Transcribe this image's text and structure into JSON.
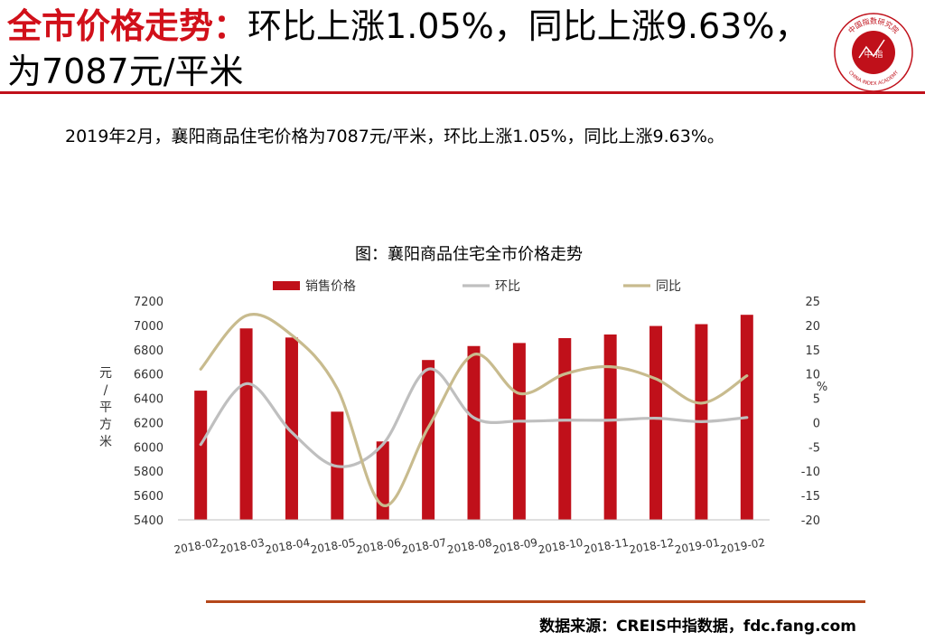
{
  "header": {
    "title_highlight": "全市价格走势：",
    "title_rest": "环比上涨1.05%，同比上涨9.63%，为7087元/平米"
  },
  "logo": {
    "name": "china-index-academy-logo",
    "text_top": "中国指数研究院",
    "text_bottom": "CHINA INDEX ACADEMY",
    "center": "中 指"
  },
  "summary": "2019年2月，襄阳商品住宅价格为7087元/平米，环比上涨1.05%，同比上涨9.63%。",
  "source": "数据来源：CREIS中指数据，fdc.fang.com",
  "colors": {
    "brand_red": "#c0101a",
    "bar": "#c0101a",
    "mom_line": "#bfbfbf",
    "yoy_line": "#c8bb8e",
    "rule": "#b5471b"
  },
  "chart_data": {
    "type": "bar",
    "title": "图：襄阳商品住宅全市价格走势",
    "categories": [
      "2018-02",
      "2018-03",
      "2018-04",
      "2018-05",
      "2018-06",
      "2018-07",
      "2018-08",
      "2018-09",
      "2018-10",
      "2018-11",
      "2018-12",
      "2019-01",
      "2019-02"
    ],
    "ylabel_left": "元/平方米",
    "ylabel_right": "%",
    "ylim_left": [
      5400,
      7200
    ],
    "ylim_right": [
      -20,
      25
    ],
    "yticks_left": [
      "7200",
      "7000",
      "6800",
      "6600",
      "6400",
      "6200",
      "6000",
      "5800",
      "5600",
      "5400"
    ],
    "yticks_right": [
      "25",
      "20",
      "15",
      "10",
      "5",
      "0",
      "-5",
      "-10",
      "-15",
      "-20"
    ],
    "legend_position": "top",
    "series": [
      {
        "name": "销售价格",
        "type": "bar",
        "axis": "left",
        "values": [
          6463,
          6975,
          6900,
          6290,
          6045,
          6715,
          6830,
          6855,
          6895,
          6925,
          6995,
          7010,
          7087
        ]
      },
      {
        "name": "环比",
        "type": "line",
        "axis": "right",
        "values": [
          -4.5,
          8,
          -2,
          -9,
          -4.5,
          11,
          1,
          0.3,
          0.5,
          0.5,
          0.9,
          0.2,
          1.05
        ]
      },
      {
        "name": "同比",
        "type": "line",
        "axis": "right",
        "values": [
          11,
          22,
          18,
          7,
          -17,
          -1,
          14,
          6,
          10,
          11.5,
          9,
          4,
          9.63
        ]
      }
    ]
  }
}
